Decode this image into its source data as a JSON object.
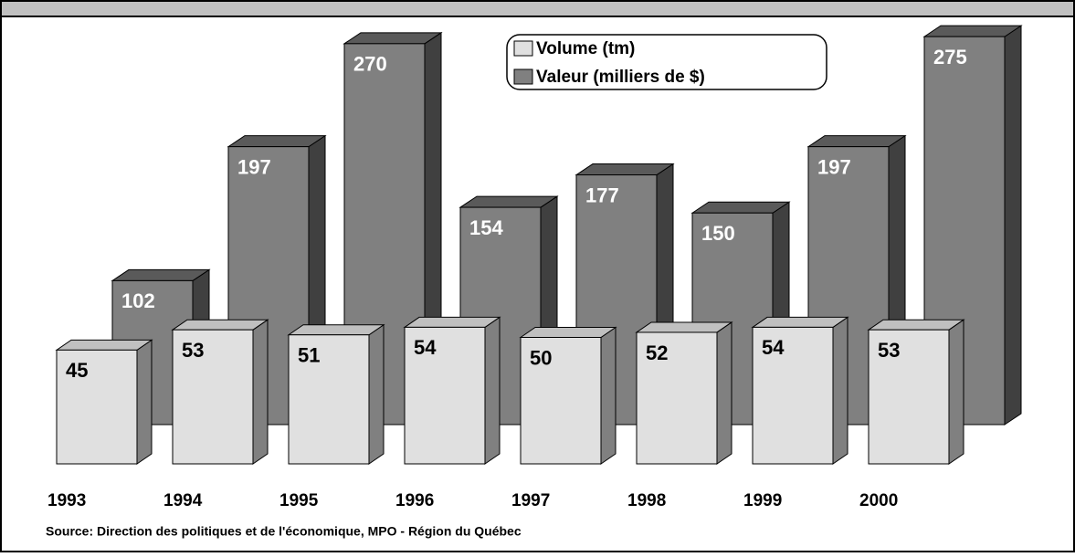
{
  "chart_data": {
    "type": "bar",
    "categories": [
      "1993",
      "1994",
      "1995",
      "1996",
      "1997",
      "1998",
      "1999",
      "2000"
    ],
    "series": [
      {
        "name": "Volume (tm)",
        "color": "#e0e0e0",
        "values": [
          45,
          53,
          51,
          54,
          50,
          52,
          54,
          53
        ]
      },
      {
        "name": "Valeur (milliers de $)",
        "color": "#808080",
        "values": [
          102,
          197,
          270,
          154,
          177,
          150,
          197,
          275
        ]
      }
    ],
    "source": "Source:  Direction des politiques et de l'économique, MPO - Région du Québec"
  }
}
